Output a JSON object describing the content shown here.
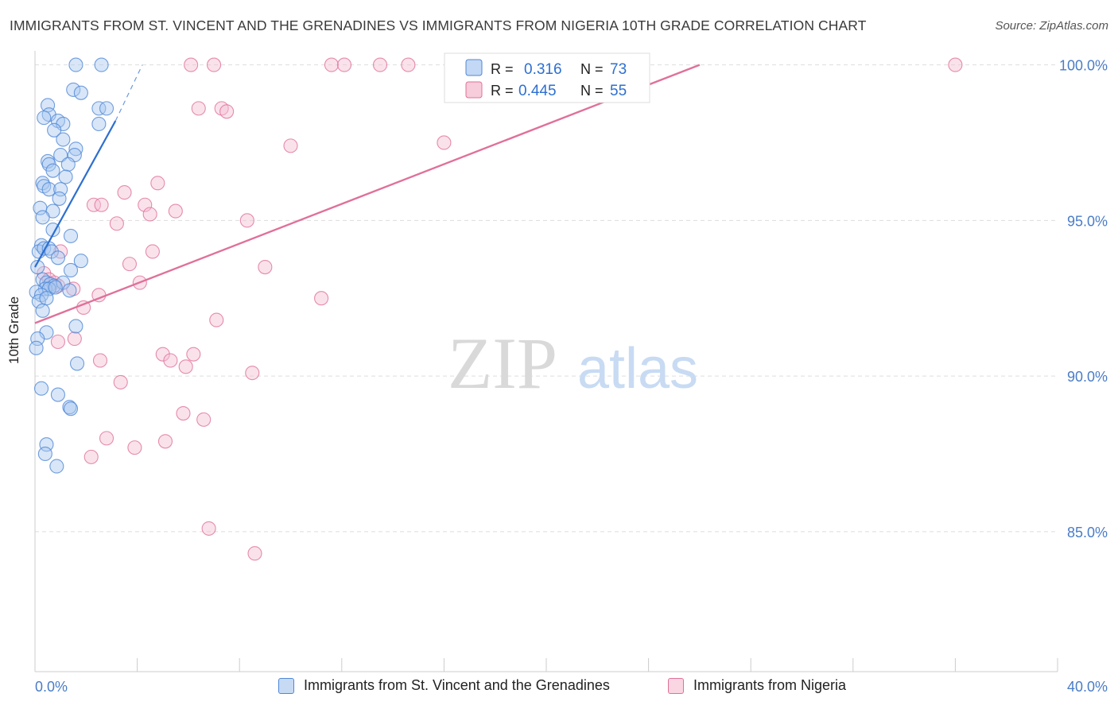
{
  "header": {
    "title": "IMMIGRANTS FROM ST. VINCENT AND THE GRENADINES VS IMMIGRANTS FROM NIGERIA 10TH GRADE CORRELATION CHART",
    "source": "Source: ZipAtlas.com"
  },
  "colors": {
    "blue": "#4f87d6",
    "blue_fill": "#a9c7ef",
    "blue_line": "#2d6fd0",
    "pink": "#e0709a",
    "pink_fill": "#f5bfd2",
    "pink_line": "#e0709a",
    "tick_label": "#4a7cc7",
    "grid": "#dddddd"
  },
  "legend": {
    "blue": {
      "r_label": "R =",
      "r_value": "0.316",
      "n_label": "N =",
      "n_value": "73"
    },
    "pink": {
      "r_label": "R =",
      "r_value": "0.445",
      "n_label": "N =",
      "n_value": "55"
    }
  },
  "watermark": {
    "zip": "ZIP",
    "atlas": "atlas"
  },
  "chart_data": {
    "type": "scatter",
    "title": "IMMIGRANTS FROM ST. VINCENT AND THE GRENADINES VS IMMIGRANTS FROM NIGERIA 10TH GRADE CORRELATION CHART",
    "xlabel": "",
    "ylabel": "10th Grade",
    "xlim": [
      0,
      40
    ],
    "ylim": [
      80.5,
      100.5
    ],
    "x_tick_labels": [
      "0.0%",
      "40.0%"
    ],
    "y_ticks": [
      85,
      90,
      95,
      100
    ],
    "y_tick_labels": [
      "85.0%",
      "90.0%",
      "95.0%",
      "100.0%"
    ],
    "grid": true,
    "series": [
      {
        "name": "Immigrants from St. Vincent and the Grenadines",
        "color": "blue",
        "trend": {
          "x": [
            0.0,
            3.15
          ],
          "y": [
            93.5,
            98.2
          ],
          "dashed_to": [
            4.2,
            100.0
          ]
        },
        "points": [
          [
            1.6,
            100.0
          ],
          [
            2.6,
            100.0
          ],
          [
            1.5,
            99.2
          ],
          [
            1.8,
            99.1
          ],
          [
            0.5,
            98.7
          ],
          [
            2.5,
            98.6
          ],
          [
            2.8,
            98.6
          ],
          [
            0.55,
            98.4
          ],
          [
            0.35,
            98.3
          ],
          [
            0.9,
            98.2
          ],
          [
            1.1,
            98.1
          ],
          [
            2.5,
            98.1
          ],
          [
            0.75,
            97.9
          ],
          [
            1.1,
            97.6
          ],
          [
            1.6,
            97.3
          ],
          [
            1.0,
            97.1
          ],
          [
            1.55,
            97.1
          ],
          [
            0.5,
            96.9
          ],
          [
            0.55,
            96.8
          ],
          [
            1.3,
            96.8
          ],
          [
            0.7,
            96.6
          ],
          [
            1.2,
            96.4
          ],
          [
            0.3,
            96.2
          ],
          [
            0.35,
            96.1
          ],
          [
            0.55,
            96.0
          ],
          [
            1.0,
            96.0
          ],
          [
            0.95,
            95.7
          ],
          [
            0.2,
            95.4
          ],
          [
            0.7,
            95.3
          ],
          [
            0.3,
            95.1
          ],
          [
            0.7,
            94.7
          ],
          [
            1.4,
            94.5
          ],
          [
            0.25,
            94.2
          ],
          [
            0.15,
            94.0
          ],
          [
            0.35,
            94.1
          ],
          [
            0.55,
            94.1
          ],
          [
            0.65,
            94.0
          ],
          [
            0.9,
            93.8
          ],
          [
            1.8,
            93.7
          ],
          [
            0.1,
            93.5
          ],
          [
            1.4,
            93.4
          ],
          [
            0.3,
            93.1
          ],
          [
            0.45,
            93.0
          ],
          [
            0.6,
            92.95
          ],
          [
            0.75,
            92.9
          ],
          [
            1.1,
            93.0
          ],
          [
            0.4,
            92.8
          ],
          [
            0.55,
            92.8
          ],
          [
            0.8,
            92.85
          ],
          [
            1.35,
            92.75
          ],
          [
            0.05,
            92.7
          ],
          [
            0.25,
            92.6
          ],
          [
            0.15,
            92.4
          ],
          [
            0.45,
            92.5
          ],
          [
            0.3,
            92.1
          ],
          [
            1.6,
            91.6
          ],
          [
            0.45,
            91.4
          ],
          [
            0.1,
            91.2
          ],
          [
            0.05,
            90.9
          ],
          [
            1.65,
            90.4
          ],
          [
            0.25,
            89.6
          ],
          [
            0.9,
            89.4
          ],
          [
            1.35,
            89.0
          ],
          [
            1.4,
            88.95
          ],
          [
            0.45,
            87.8
          ],
          [
            0.4,
            87.5
          ],
          [
            0.85,
            87.1
          ]
        ]
      },
      {
        "name": "Immigrants from Nigeria",
        "color": "pink",
        "trend": {
          "x": [
            0.0,
            26.0
          ],
          "y": [
            91.7,
            100.0
          ]
        },
        "points": [
          [
            6.1,
            100.0
          ],
          [
            7.0,
            100.0
          ],
          [
            11.6,
            100.0
          ],
          [
            12.1,
            100.0
          ],
          [
            13.5,
            100.0
          ],
          [
            14.6,
            100.0
          ],
          [
            16.5,
            100.0
          ],
          [
            36.0,
            100.0
          ],
          [
            6.4,
            98.6
          ],
          [
            7.3,
            98.6
          ],
          [
            7.5,
            98.5
          ],
          [
            10.0,
            97.4
          ],
          [
            16.0,
            97.5
          ],
          [
            4.8,
            96.2
          ],
          [
            3.5,
            95.9
          ],
          [
            2.3,
            95.5
          ],
          [
            2.6,
            95.5
          ],
          [
            4.3,
            95.5
          ],
          [
            4.5,
            95.2
          ],
          [
            5.5,
            95.3
          ],
          [
            8.3,
            95.0
          ],
          [
            3.2,
            94.9
          ],
          [
            4.6,
            94.0
          ],
          [
            1.0,
            94.0
          ],
          [
            3.7,
            93.6
          ],
          [
            9.0,
            93.5
          ],
          [
            0.35,
            93.3
          ],
          [
            0.55,
            93.1
          ],
          [
            0.75,
            93.0
          ],
          [
            0.9,
            92.9
          ],
          [
            1.5,
            92.8
          ],
          [
            4.1,
            93.0
          ],
          [
            2.5,
            92.6
          ],
          [
            11.2,
            92.5
          ],
          [
            1.9,
            92.2
          ],
          [
            7.1,
            91.8
          ],
          [
            1.55,
            91.2
          ],
          [
            0.9,
            91.1
          ],
          [
            5.0,
            90.7
          ],
          [
            6.2,
            90.7
          ],
          [
            2.55,
            90.5
          ],
          [
            5.3,
            90.5
          ],
          [
            5.9,
            90.3
          ],
          [
            8.5,
            90.1
          ],
          [
            3.35,
            89.8
          ],
          [
            5.8,
            88.8
          ],
          [
            6.6,
            88.6
          ],
          [
            2.8,
            88.0
          ],
          [
            5.1,
            87.9
          ],
          [
            3.9,
            87.7
          ],
          [
            2.2,
            87.4
          ],
          [
            6.8,
            85.1
          ],
          [
            8.6,
            84.3
          ]
        ]
      }
    ]
  }
}
